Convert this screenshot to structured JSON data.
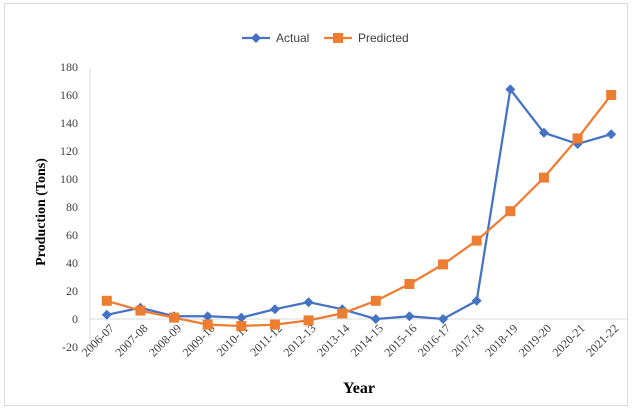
{
  "chart_data": {
    "type": "line",
    "xlabel": "Year",
    "ylabel": "Production (Tons)",
    "ylim": [
      -20,
      180
    ],
    "ystep": 20,
    "grid": false,
    "legend_position": "top-center",
    "categories": [
      "2006-07",
      "2007-08",
      "2008-09",
      "2009-10",
      "2010-11",
      "2011-12",
      "2012-13",
      "2013-14",
      "2014-15",
      "2015-16",
      "2016-17",
      "2017-18",
      "2018-19",
      "2019-20",
      "2020-21",
      "2021-22"
    ],
    "series": [
      {
        "name": "Actual",
        "color": "#4472c4",
        "marker": "diamond",
        "values": [
          3,
          8,
          2,
          2,
          1,
          7,
          12,
          7,
          0,
          2,
          0,
          13,
          164,
          133,
          125,
          132
        ]
      },
      {
        "name": "Predicted",
        "color": "#ed7d31",
        "marker": "square",
        "values": [
          13,
          6,
          1,
          -4,
          -5,
          -4,
          -1,
          4,
          13,
          25,
          39,
          56,
          77,
          101,
          129,
          160
        ]
      }
    ]
  }
}
